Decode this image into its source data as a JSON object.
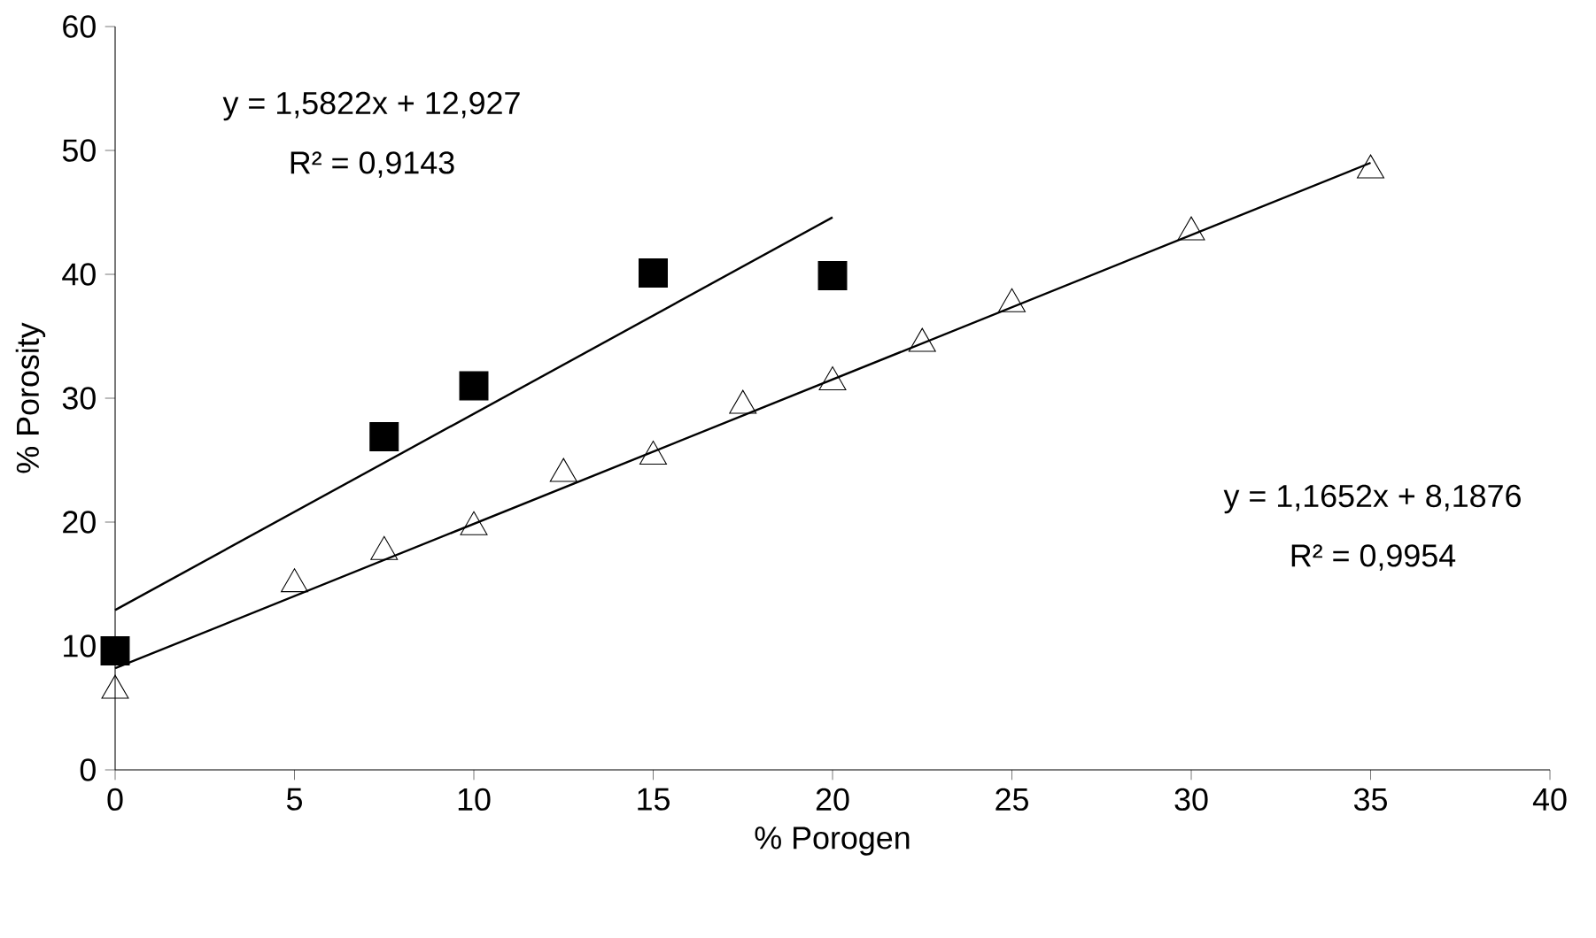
{
  "chart_data": {
    "type": "scatter",
    "xlabel": "% Porogen",
    "ylabel": "% Porosity",
    "xlim": [
      0,
      40
    ],
    "xticks": [
      0,
      5,
      10,
      15,
      20,
      25,
      30,
      35,
      40
    ],
    "ylim": [
      0,
      60
    ],
    "yticks": [
      0,
      10,
      20,
      30,
      40,
      50,
      60
    ],
    "grid": false,
    "series": [
      {
        "marker": "square",
        "color": "#000000",
        "x": [
          0,
          7.5,
          10,
          15,
          20
        ],
        "values": [
          9.6,
          26.9,
          31.0,
          40.1,
          39.9
        ]
      },
      {
        "marker": "triangle",
        "color": "#000000",
        "x": [
          0,
          5,
          7.5,
          10,
          12.5,
          15,
          17.5,
          20,
          22.5,
          25,
          30,
          35
        ],
        "values": [
          6.4,
          15.0,
          17.6,
          19.6,
          23.9,
          25.3,
          29.4,
          31.3,
          34.4,
          37.6,
          43.4,
          48.4
        ]
      },
      {
        "type": "line",
        "marker": "none",
        "color": "#000000",
        "x": [
          0,
          20
        ],
        "values": [
          12.9,
          44.6
        ]
      },
      {
        "type": "line",
        "marker": "none",
        "color": "#000000",
        "x": [
          0,
          35
        ],
        "values": [
          8.2,
          49.0
        ]
      }
    ],
    "annotations": [
      "y = 1,5822x + 12,927",
      "R² = 0,9143",
      "y = 1,1652x + 8,1876",
      "R² = 0,9954"
    ]
  }
}
